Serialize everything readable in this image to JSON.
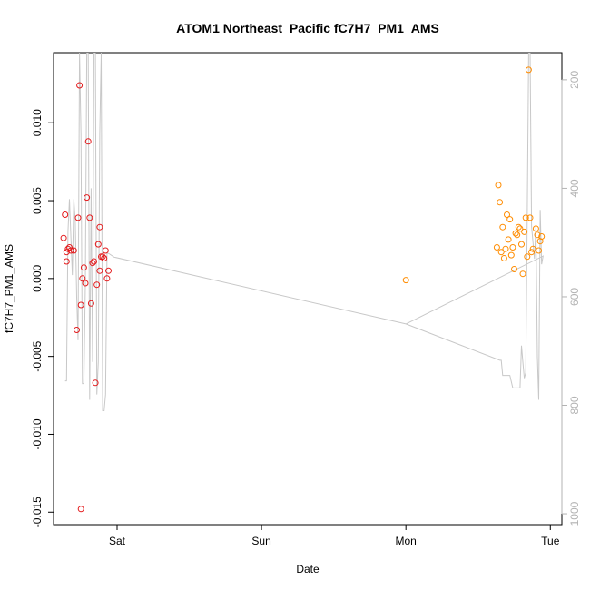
{
  "chart_data": {
    "type": "scatter",
    "title": "ATOM1 Northeast_Pacific fC7H7_PM1_AMS",
    "xlabel": "Date",
    "ylabel": "fC7H7_PM1_AMS",
    "xlim": [
      -0.44,
      3.08
    ],
    "ylim": [
      -0.0158,
      0.0145
    ],
    "x_ticks": [
      {
        "value": 0,
        "label": "Sat"
      },
      {
        "value": 1,
        "label": "Sun"
      },
      {
        "value": 2,
        "label": "Mon"
      },
      {
        "value": 3,
        "label": "Tue"
      }
    ],
    "y_ticks": [
      -0.015,
      -0.01,
      -0.005,
      0.0,
      0.005,
      0.01
    ],
    "y_tick_labels": [
      "-0.015",
      "-0.010",
      "-0.005",
      "0.000",
      "0.005",
      "0.010"
    ],
    "y2lim": [
      1020,
      150
    ],
    "y2_ticks": [
      200,
      400,
      600,
      800,
      1000
    ],
    "y2_tick_labels": [
      "200",
      "400",
      "600",
      "800",
      "1000"
    ],
    "colors": {
      "series_a": "#e41a1c",
      "series_b": "#ff8c00",
      "altitude": "#c8c8c8",
      "axis": "#000000",
      "right_axis": "#b3b3b3"
    },
    "series": [
      {
        "color": "#e41a1c",
        "points": [
          [
            -0.37,
            0.0026
          ],
          [
            -0.36,
            0.0041
          ],
          [
            -0.35,
            0.0011
          ],
          [
            -0.35,
            0.0017
          ],
          [
            -0.34,
            0.0019
          ],
          [
            -0.33,
            0.002
          ],
          [
            -0.32,
            0.0018
          ],
          [
            -0.3,
            0.0018
          ],
          [
            -0.28,
            -0.0033
          ],
          [
            -0.27,
            0.0039
          ],
          [
            -0.26,
            0.0124
          ],
          [
            -0.25,
            -0.0148
          ],
          [
            -0.25,
            -0.0017
          ],
          [
            -0.24,
            0.0
          ],
          [
            -0.23,
            0.0007
          ],
          [
            -0.22,
            -0.0003
          ],
          [
            -0.21,
            0.0052
          ],
          [
            -0.2,
            0.0088
          ],
          [
            -0.19,
            0.0039
          ],
          [
            -0.18,
            -0.0016
          ],
          [
            -0.17,
            0.001
          ],
          [
            -0.16,
            0.0011
          ],
          [
            -0.15,
            -0.0067
          ],
          [
            -0.14,
            -0.0004
          ],
          [
            -0.13,
            0.0022
          ],
          [
            -0.12,
            0.0005
          ],
          [
            -0.12,
            0.0033
          ],
          [
            -0.11,
            0.0014
          ],
          [
            -0.1,
            0.0014
          ],
          [
            -0.09,
            0.0013
          ],
          [
            -0.08,
            0.0018
          ],
          [
            -0.07,
            0.0
          ],
          [
            -0.06,
            0.0005
          ]
        ]
      },
      {
        "color": "#ff8c00",
        "points": [
          [
            2.0,
            -0.0001
          ],
          [
            2.63,
            0.002
          ],
          [
            2.64,
            0.006
          ],
          [
            2.65,
            0.0049
          ],
          [
            2.66,
            0.0017
          ],
          [
            2.67,
            0.0033
          ],
          [
            2.68,
            0.0013
          ],
          [
            2.69,
            0.0019
          ],
          [
            2.7,
            0.0041
          ],
          [
            2.71,
            0.0025
          ],
          [
            2.72,
            0.0038
          ],
          [
            2.73,
            0.0015
          ],
          [
            2.74,
            0.002
          ],
          [
            2.75,
            0.0006
          ],
          [
            2.76,
            0.0029
          ],
          [
            2.77,
            0.0028
          ],
          [
            2.78,
            0.0033
          ],
          [
            2.79,
            0.0032
          ],
          [
            2.8,
            0.0022
          ],
          [
            2.81,
            0.0003
          ],
          [
            2.82,
            0.003
          ],
          [
            2.83,
            0.0039
          ],
          [
            2.84,
            0.0014
          ],
          [
            2.85,
            0.0134
          ],
          [
            2.86,
            0.0039
          ],
          [
            2.87,
            0.0017
          ],
          [
            2.88,
            0.0019
          ],
          [
            2.9,
            0.0032
          ],
          [
            2.91,
            0.0028
          ],
          [
            2.92,
            0.0018
          ],
          [
            2.93,
            0.0024
          ],
          [
            2.94,
            0.0027
          ]
        ]
      }
    ],
    "altitude_line": {
      "color": "#c8c8c8",
      "points": [
        [
          -0.36,
          755
        ],
        [
          -0.35,
          755
        ],
        [
          -0.34,
          480
        ],
        [
          -0.33,
          420
        ],
        [
          -0.32,
          490
        ],
        [
          -0.31,
          560
        ],
        [
          -0.3,
          420
        ],
        [
          -0.29,
          460
        ],
        [
          -0.28,
          600
        ],
        [
          -0.27,
          680
        ],
        [
          -0.26,
          150
        ],
        [
          -0.25,
          300
        ],
        [
          -0.24,
          760
        ],
        [
          -0.23,
          760
        ],
        [
          -0.22,
          580
        ],
        [
          -0.21,
          150
        ],
        [
          -0.2,
          150
        ],
        [
          -0.19,
          790
        ],
        [
          -0.18,
          400
        ],
        [
          -0.17,
          720
        ],
        [
          -0.16,
          150
        ],
        [
          -0.15,
          150
        ],
        [
          -0.14,
          780
        ],
        [
          -0.13,
          720
        ],
        [
          -0.12,
          300
        ],
        [
          -0.11,
          150
        ],
        [
          -0.1,
          810
        ],
        [
          -0.09,
          810
        ],
        [
          -0.08,
          780
        ],
        [
          -0.07,
          520
        ],
        [
          -0.06,
          520
        ],
        [
          -0.02,
          527
        ],
        [
          2.0,
          650
        ],
        [
          2.65,
          717
        ],
        [
          2.66,
          717
        ],
        [
          2.67,
          745
        ],
        [
          2.7,
          745
        ],
        [
          2.72,
          745
        ],
        [
          2.74,
          768
        ],
        [
          2.79,
          768
        ],
        [
          2.8,
          690
        ],
        [
          2.81,
          720
        ],
        [
          2.82,
          750
        ],
        [
          2.83,
          740
        ],
        [
          2.84,
          460
        ],
        [
          2.85,
          150
        ],
        [
          2.86,
          150
        ],
        [
          2.87,
          470
        ],
        [
          2.89,
          530
        ],
        [
          2.9,
          470
        ],
        [
          2.91,
          710
        ],
        [
          2.92,
          790
        ],
        [
          2.93,
          440
        ],
        [
          2.94,
          540
        ],
        [
          2.95,
          525
        ],
        [
          2.0,
          650
        ]
      ]
    }
  }
}
